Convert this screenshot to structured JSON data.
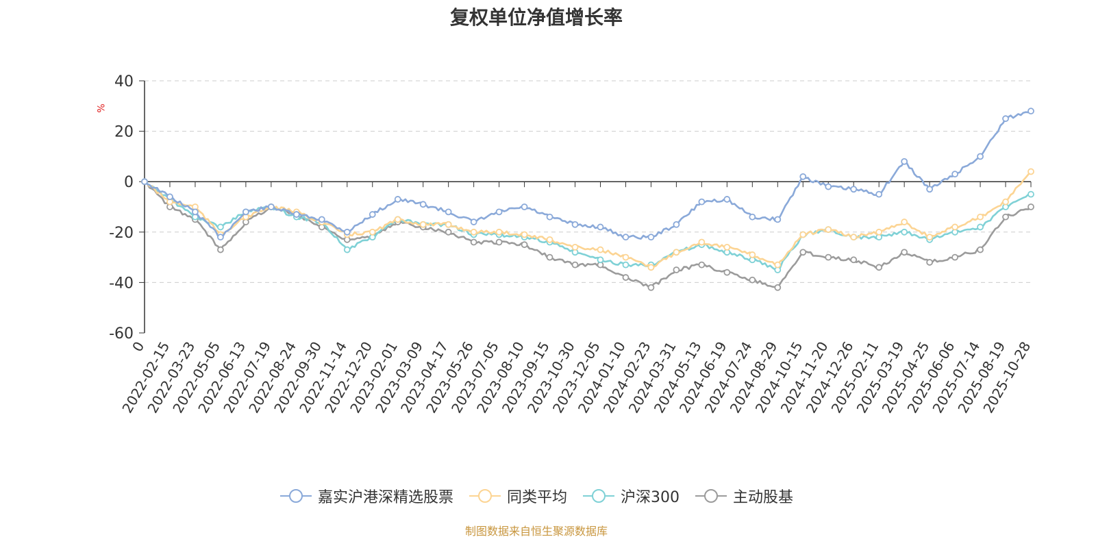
{
  "chart_data": {
    "type": "line",
    "title": "复权单位净值增长率",
    "ylabel": "%",
    "ylim": [
      -60,
      40
    ],
    "yticks": [
      40,
      20,
      0,
      -20,
      -40,
      -60
    ],
    "grid": true,
    "legend_position": "bottom",
    "categories": [
      "0",
      "2022-02-15",
      "2022-03-23",
      "2022-05-05",
      "2022-06-13",
      "2022-07-19",
      "2022-08-24",
      "2022-09-30",
      "2022-11-14",
      "2022-12-20",
      "2023-02-01",
      "2023-03-09",
      "2023-04-17",
      "2023-05-26",
      "2023-07-05",
      "2023-08-10",
      "2023-09-15",
      "2023-10-30",
      "2023-12-05",
      "2024-01-10",
      "2024-02-23",
      "2024-03-31",
      "2024-05-13",
      "2024-06-19",
      "2024-07-24",
      "2024-08-29",
      "2024-10-15",
      "2024-11-20",
      "2024-12-26",
      "2025-02-11",
      "2025-03-19",
      "2025-04-25",
      "2025-06-06",
      "2025-07-14",
      "2025-08-19",
      "2025-10-28"
    ],
    "series": [
      {
        "name": "嘉实沪港深精选股票",
        "color": "#8aa9d9",
        "values": [
          0,
          -6,
          -12,
          -22,
          -12,
          -10,
          -13,
          -15,
          -20,
          -13,
          -7,
          -9,
          -12,
          -16,
          -12,
          -10,
          -14,
          -17,
          -18,
          -22,
          -22,
          -17,
          -8,
          -7,
          -14,
          -15,
          2,
          -2,
          -3,
          -5,
          8,
          -3,
          3,
          10,
          25,
          28
        ]
      },
      {
        "name": "同类平均",
        "color": "#fcd493",
        "values": [
          0,
          -8,
          -10,
          -21,
          -14,
          -10,
          -12,
          -16,
          -21,
          -20,
          -15,
          -17,
          -17,
          -20,
          -20,
          -21,
          -23,
          -26,
          -27,
          -30,
          -34,
          -28,
          -24,
          -26,
          -29,
          -33,
          -21,
          -19,
          -22,
          -20,
          -16,
          -22,
          -18,
          -14,
          -8,
          4
        ]
      },
      {
        "name": "沪深300",
        "color": "#7fd1d6",
        "values": [
          0,
          -7,
          -14,
          -18,
          -12,
          -10,
          -14,
          -16,
          -27,
          -22,
          -15,
          -17,
          -17,
          -21,
          -21,
          -22,
          -24,
          -28,
          -31,
          -33,
          -33,
          -28,
          -25,
          -28,
          -31,
          -35,
          -21,
          -19,
          -22,
          -22,
          -20,
          -23,
          -20,
          -18,
          -10,
          -5
        ]
      },
      {
        "name": "主动股基",
        "color": "#9b9b9b",
        "values": [
          0,
          -10,
          -15,
          -27,
          -16,
          -10,
          -13,
          -18,
          -23,
          -22,
          -16,
          -18,
          -20,
          -24,
          -24,
          -25,
          -30,
          -33,
          -33,
          -38,
          -42,
          -35,
          -33,
          -36,
          -39,
          -42,
          -28,
          -30,
          -31,
          -34,
          -28,
          -32,
          -30,
          -27,
          -14,
          -10
        ]
      }
    ]
  },
  "source": "制图数据来自恒生聚源数据库"
}
